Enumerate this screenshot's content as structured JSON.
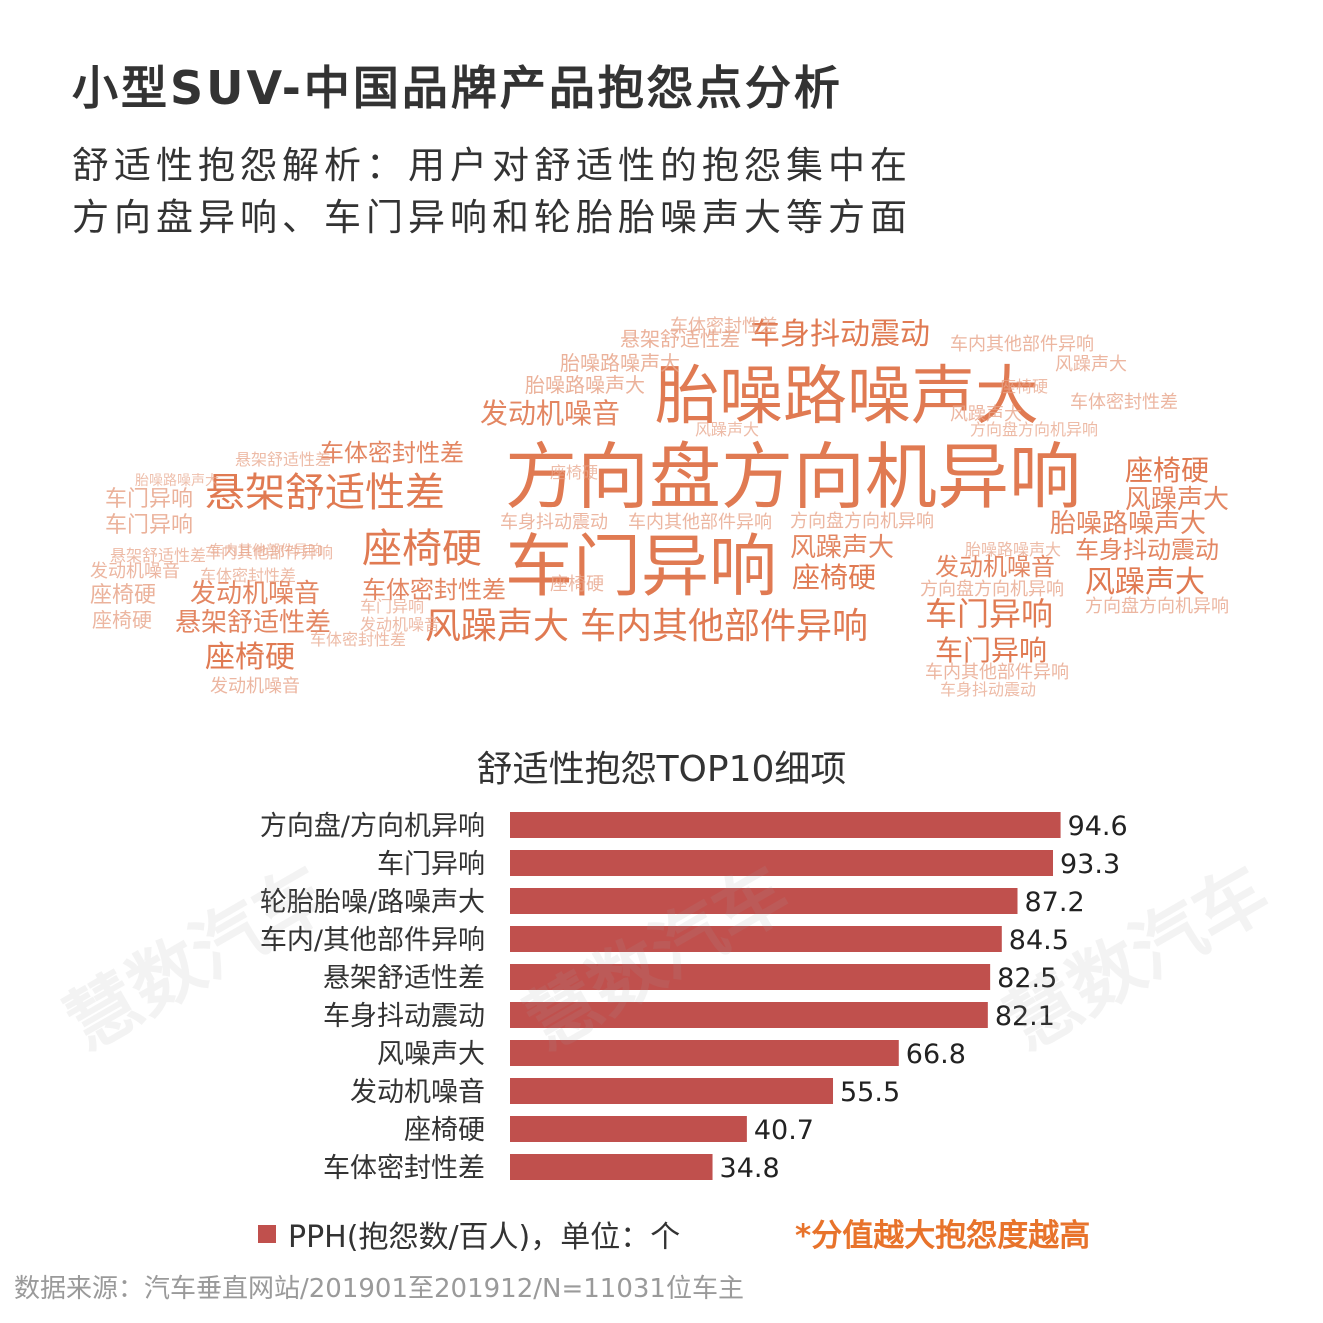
{
  "page": {
    "title": "小型SUV-中国品牌产品抱怨点分析",
    "subtitle_line1": "舒适性抱怨解析：用户对舒适性的抱怨集中在",
    "subtitle_line2": "方向盘异响、车门异响和轮胎胎噪声大等方面",
    "watermark": "慧数汽车",
    "legend_label": "PPH(抱怨数/百人)，单位：个",
    "note": "*分值越大抱怨度越高",
    "source": "数据来源：汽车垂直网站/201901至201912/N=11031位车主"
  },
  "colors": {
    "bar": "#c0504d",
    "cloud": "#e07a52",
    "cloud_light": "#e8a58a",
    "note": "#e8732b"
  },
  "wordcloud": [
    "胎噪路噪声大",
    "方向盘方向机异响",
    "车门异响",
    "风躁声大",
    "车内其他部件异响",
    "悬架舒适性差",
    "座椅硬",
    "车身抖动震动",
    "发动机噪音",
    "车体密封性差"
  ],
  "chart_data": {
    "type": "bar",
    "orientation": "horizontal",
    "title": "舒适性抱怨TOP10细项",
    "categories": [
      "方向盘/方向机异响",
      "车门异响",
      "轮胎胎噪/路噪声大",
      "车内/其他部件异响",
      "悬架舒适性差",
      "车身抖动震动",
      "风噪声大",
      "发动机噪音",
      "座椅硬",
      "车体密封性差"
    ],
    "series": [
      {
        "name": "PPH(抱怨数/百人)",
        "values": [
          94.6,
          93.3,
          87.2,
          84.5,
          82.5,
          82.1,
          66.8,
          55.5,
          40.7,
          34.8
        ]
      }
    ],
    "xlim": [
      0,
      100
    ],
    "grid": false,
    "legend": "bottom-left"
  }
}
